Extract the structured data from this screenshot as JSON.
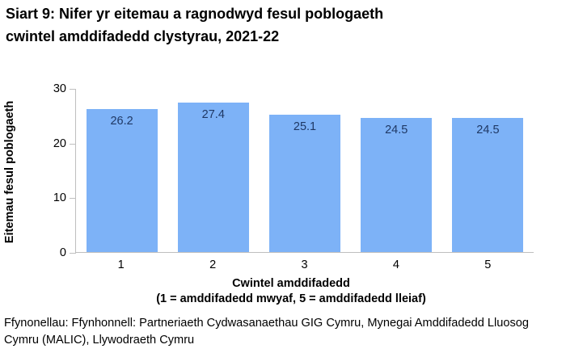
{
  "title": {
    "lines": [
      "Siart 9: Nifer yr eitemau a ragnodwyd fesul poblogaeth",
      "cwintel amddifadedd clystyrau, 2021-22"
    ]
  },
  "chart_data": {
    "type": "bar",
    "title": "Siart 9: Nifer yr eitemau a ragnodwyd fesul poblogaeth cwintel amddifadedd clystyrau, 2021-22",
    "categories": [
      "1",
      "2",
      "3",
      "4",
      "5"
    ],
    "values": [
      26.2,
      27.4,
      25.1,
      24.5,
      24.5
    ],
    "data_labels": [
      "26.2",
      "27.4",
      "25.1",
      "24.5",
      "24.5"
    ],
    "xlabel": "Cwintel amddifadedd",
    "xlabel_lines": [
      "Cwintel amddifadedd",
      "(1 = amddifadedd mwyaf, 5 = amddifadedd lleiaf)"
    ],
    "ylabel": "Eitemau fesul poblogaeth",
    "yticks": [
      0,
      10,
      20,
      30
    ],
    "ylim": [
      0,
      30
    ],
    "grid": false,
    "legend": "none",
    "bar_color": "#7DB2F7",
    "data_label_color": "#1F3864",
    "axis_color": "#BFBFBF",
    "text_color": "#000000"
  },
  "source": {
    "text": "Ffynonellau: Ffynhonnell: Partneriaeth Cydwasanaethau GIG Cymru, Mynegai Amddifadedd Lluosog Cymru (MALIC), Llywodraeth Cymru"
  }
}
